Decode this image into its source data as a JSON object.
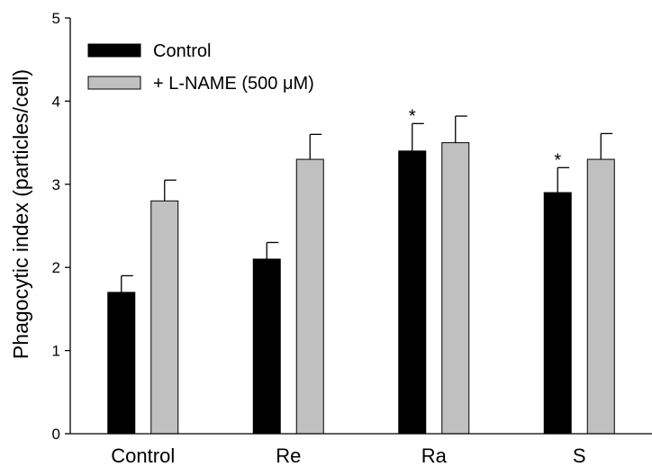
{
  "chart_data": {
    "type": "bar",
    "title": "",
    "xlabel": "",
    "ylabel": "Phagocytic index (particles/cell)",
    "ylim": [
      0,
      5
    ],
    "yticks": [
      0,
      1,
      2,
      3,
      4,
      5
    ],
    "categories": [
      "Control",
      "Re",
      "Ra",
      "S"
    ],
    "series": [
      {
        "name": "Control",
        "color": "#000000",
        "values": [
          1.7,
          2.1,
          3.4,
          2.9
        ],
        "errors": [
          0.2,
          0.2,
          0.33,
          0.3
        ],
        "annotations": [
          "",
          "",
          "*",
          "*"
        ]
      },
      {
        "name": "+ L-NAME (500 μM)",
        "color": "#c0c0c0",
        "values": [
          2.8,
          3.3,
          3.5,
          3.3
        ],
        "errors": [
          0.25,
          0.3,
          0.32,
          0.31
        ],
        "annotations": [
          "",
          "",
          "",
          ""
        ]
      }
    ],
    "legend_position": "top-left",
    "grid": false
  }
}
